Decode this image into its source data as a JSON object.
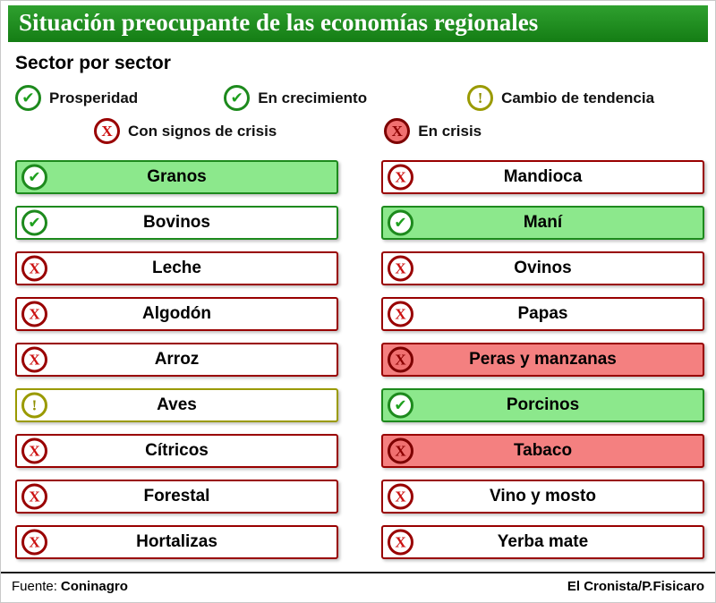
{
  "title": "Situación preocupante de las economías regionales",
  "subtitle": "Sector por sector",
  "icons": {
    "check": "✔",
    "cross": "X",
    "warning": "!"
  },
  "legend": {
    "items": [
      {
        "label": "Prosperidad",
        "status": "prosperity"
      },
      {
        "label": "En crecimiento",
        "status": "growth"
      },
      {
        "label": "Cambio de tendencia",
        "status": "trend-change"
      },
      {
        "label": "Con signos de crisis",
        "status": "crisis-signs"
      },
      {
        "label": "En crisis",
        "status": "crisis"
      }
    ]
  },
  "sectors": {
    "left": [
      {
        "label": "Granos",
        "status": "prosperity"
      },
      {
        "label": "Bovinos",
        "status": "growth"
      },
      {
        "label": "Leche",
        "status": "crisis-signs"
      },
      {
        "label": "Algodón",
        "status": "crisis-signs"
      },
      {
        "label": "Arroz",
        "status": "crisis-signs"
      },
      {
        "label": "Aves",
        "status": "trend-change"
      },
      {
        "label": "Cítricos",
        "status": "crisis-signs"
      },
      {
        "label": "Forestal",
        "status": "crisis-signs"
      },
      {
        "label": "Hortalizas",
        "status": "crisis-signs"
      }
    ],
    "right": [
      {
        "label": "Mandioca",
        "status": "crisis-signs"
      },
      {
        "label": "Maní",
        "status": "prosperity"
      },
      {
        "label": "Ovinos",
        "status": "crisis-signs"
      },
      {
        "label": "Papas",
        "status": "crisis-signs"
      },
      {
        "label": "Peras y manzanas",
        "status": "crisis"
      },
      {
        "label": "Porcinos",
        "status": "prosperity"
      },
      {
        "label": "Tabaco",
        "status": "crisis"
      },
      {
        "label": "Vino y mosto",
        "status": "crisis-signs"
      },
      {
        "label": "Yerba mate",
        "status": "crisis-signs"
      }
    ]
  },
  "footer": {
    "source_label": "Fuente:",
    "source_value": "Coninagro",
    "credit": "El Cronista/P.Fisicaro"
  },
  "colors": {
    "header_green": "#1e8c1e",
    "green_border": "#1d8a1d",
    "green_fill": "#8ce88c",
    "red_border": "#990000",
    "red_fill": "#f48080",
    "olive": "#9a9a00"
  },
  "chart_data": {
    "type": "table",
    "title": "Situación preocupante de las economías regionales",
    "subtitle": "Sector por sector",
    "legend": [
      "Prosperidad",
      "En crecimiento",
      "Cambio de tendencia",
      "Con signos de crisis",
      "En crisis"
    ],
    "rows": [
      {
        "sector": "Granos",
        "estado": "Prosperidad"
      },
      {
        "sector": "Bovinos",
        "estado": "En crecimiento"
      },
      {
        "sector": "Leche",
        "estado": "Con signos de crisis"
      },
      {
        "sector": "Algodón",
        "estado": "Con signos de crisis"
      },
      {
        "sector": "Arroz",
        "estado": "Con signos de crisis"
      },
      {
        "sector": "Aves",
        "estado": "Cambio de tendencia"
      },
      {
        "sector": "Cítricos",
        "estado": "Con signos de crisis"
      },
      {
        "sector": "Forestal",
        "estado": "Con signos de crisis"
      },
      {
        "sector": "Hortalizas",
        "estado": "Con signos de crisis"
      },
      {
        "sector": "Mandioca",
        "estado": "Con signos de crisis"
      },
      {
        "sector": "Maní",
        "estado": "Prosperidad"
      },
      {
        "sector": "Ovinos",
        "estado": "Con signos de crisis"
      },
      {
        "sector": "Papas",
        "estado": "Con signos de crisis"
      },
      {
        "sector": "Peras y manzanas",
        "estado": "En crisis"
      },
      {
        "sector": "Porcinos",
        "estado": "Prosperidad"
      },
      {
        "sector": "Tabaco",
        "estado": "En crisis"
      },
      {
        "sector": "Vino y mosto",
        "estado": "Con signos de crisis"
      },
      {
        "sector": "Yerba mate",
        "estado": "Con signos de crisis"
      }
    ]
  }
}
